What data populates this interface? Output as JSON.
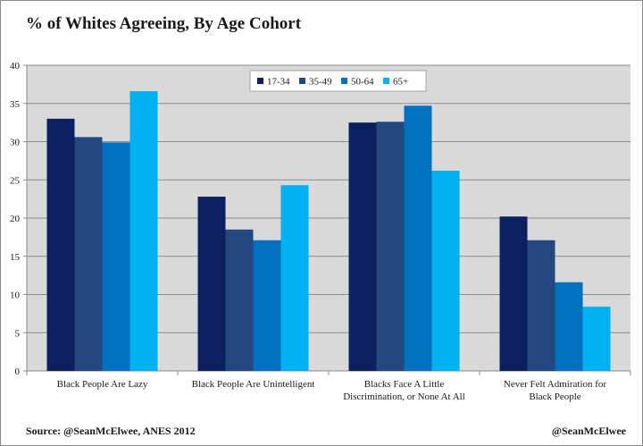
{
  "chart_data": {
    "type": "bar",
    "title": "% of Whites Agreeing, By Age Cohort",
    "categories": [
      [
        "Black People Are Lazy"
      ],
      [
        "Black People Are Unintelligent"
      ],
      [
        "Blacks Face A Little",
        "Discrimination, or None At All"
      ],
      [
        "Never Felt Admiration for",
        "Black People"
      ]
    ],
    "series": [
      {
        "name": "17-34",
        "color": "#0c1f5e",
        "values": [
          33.0,
          22.8,
          32.5,
          20.2
        ]
      },
      {
        "name": "35-49",
        "color": "#22487f",
        "values": [
          30.6,
          18.5,
          32.6,
          17.1
        ]
      },
      {
        "name": "50-64",
        "color": "#0070c0",
        "values": [
          29.9,
          17.1,
          34.7,
          11.6
        ]
      },
      {
        "name": "65+",
        "color": "#00b0f0",
        "values": [
          36.6,
          24.3,
          26.2,
          8.4
        ]
      }
    ],
    "ylim": [
      0,
      40
    ],
    "yticks": [
      0,
      5,
      10,
      15,
      20,
      25,
      30,
      35,
      40
    ],
    "grid": true,
    "legend_position": "top-center",
    "plot_background": "#d9d9d9"
  },
  "footer": {
    "source": "Source: @SeanMcElwee, ANES 2012",
    "handle": "@SeanMcElwee"
  }
}
